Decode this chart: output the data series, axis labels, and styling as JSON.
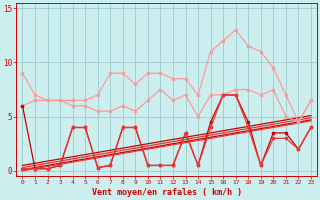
{
  "x": [
    0,
    1,
    2,
    3,
    4,
    5,
    6,
    7,
    8,
    9,
    10,
    11,
    12,
    13,
    14,
    15,
    16,
    17,
    18,
    19,
    20,
    21,
    22,
    23
  ],
  "line_light1": [
    9.0,
    7.0,
    6.5,
    6.5,
    6.5,
    6.5,
    7.0,
    9.0,
    9.0,
    8.0,
    9.0,
    9.0,
    8.5,
    8.5,
    7.0,
    11.0,
    12.0,
    13.0,
    11.5,
    11.0,
    9.5,
    7.0,
    4.5,
    6.5
  ],
  "line_light2": [
    6.0,
    6.5,
    6.5,
    6.5,
    6.0,
    6.0,
    5.5,
    5.5,
    6.0,
    5.5,
    6.5,
    7.5,
    6.5,
    7.0,
    5.0,
    7.0,
    7.0,
    7.5,
    7.5,
    7.0,
    7.5,
    5.0,
    4.5,
    6.5
  ],
  "line_dark1": [
    6.0,
    0.2,
    0.2,
    0.5,
    4.0,
    4.0,
    0.3,
    0.5,
    4.0,
    4.0,
    0.5,
    0.5,
    0.5,
    3.5,
    0.5,
    4.5,
    7.0,
    7.0,
    4.5,
    0.5,
    3.5,
    3.5,
    2.0,
    4.0
  ],
  "line_dark2": [
    0.2,
    0.2,
    0.2,
    0.5,
    4.0,
    4.0,
    0.3,
    0.5,
    4.0,
    4.0,
    0.5,
    0.5,
    0.5,
    3.5,
    0.5,
    4.0,
    7.0,
    7.0,
    4.0,
    0.5,
    3.0,
    3.0,
    2.0,
    4.0
  ],
  "trend1": [
    0.5,
    0.7,
    0.9,
    1.1,
    1.3,
    1.5,
    1.7,
    1.9,
    2.1,
    2.3,
    2.5,
    2.7,
    2.9,
    3.1,
    3.3,
    3.5,
    3.7,
    3.9,
    4.1,
    4.3,
    4.5,
    4.7,
    4.9,
    5.1
  ],
  "trend2": [
    0.3,
    0.5,
    0.7,
    0.9,
    1.1,
    1.3,
    1.5,
    1.7,
    1.9,
    2.1,
    2.3,
    2.5,
    2.7,
    2.9,
    3.1,
    3.3,
    3.5,
    3.7,
    3.9,
    4.1,
    4.3,
    4.5,
    4.7,
    4.9
  ],
  "trend3": [
    0.1,
    0.3,
    0.5,
    0.7,
    0.9,
    1.1,
    1.3,
    1.5,
    1.7,
    1.9,
    2.1,
    2.3,
    2.5,
    2.7,
    2.9,
    3.1,
    3.3,
    3.5,
    3.7,
    3.9,
    4.1,
    4.3,
    4.5,
    4.7
  ],
  "trend4": [
    0.0,
    0.2,
    0.4,
    0.6,
    0.8,
    1.0,
    1.2,
    1.4,
    1.6,
    1.8,
    2.0,
    2.2,
    2.4,
    2.6,
    2.8,
    3.0,
    3.2,
    3.4,
    3.6,
    3.8,
    4.0,
    4.2,
    4.4,
    4.6
  ],
  "color_dark": "#cc0000",
  "color_medium": "#ee3333",
  "color_light": "#ff9999",
  "bg_color": "#cceeee",
  "grid_color": "#99cccc",
  "axis_color": "#cc0000",
  "xlabel": "Vent moyen/en rafales ( km/h )",
  "ylim": [
    -0.5,
    15.5
  ],
  "xlim": [
    -0.5,
    23.5
  ],
  "yticks": [
    0,
    5,
    10,
    15
  ]
}
